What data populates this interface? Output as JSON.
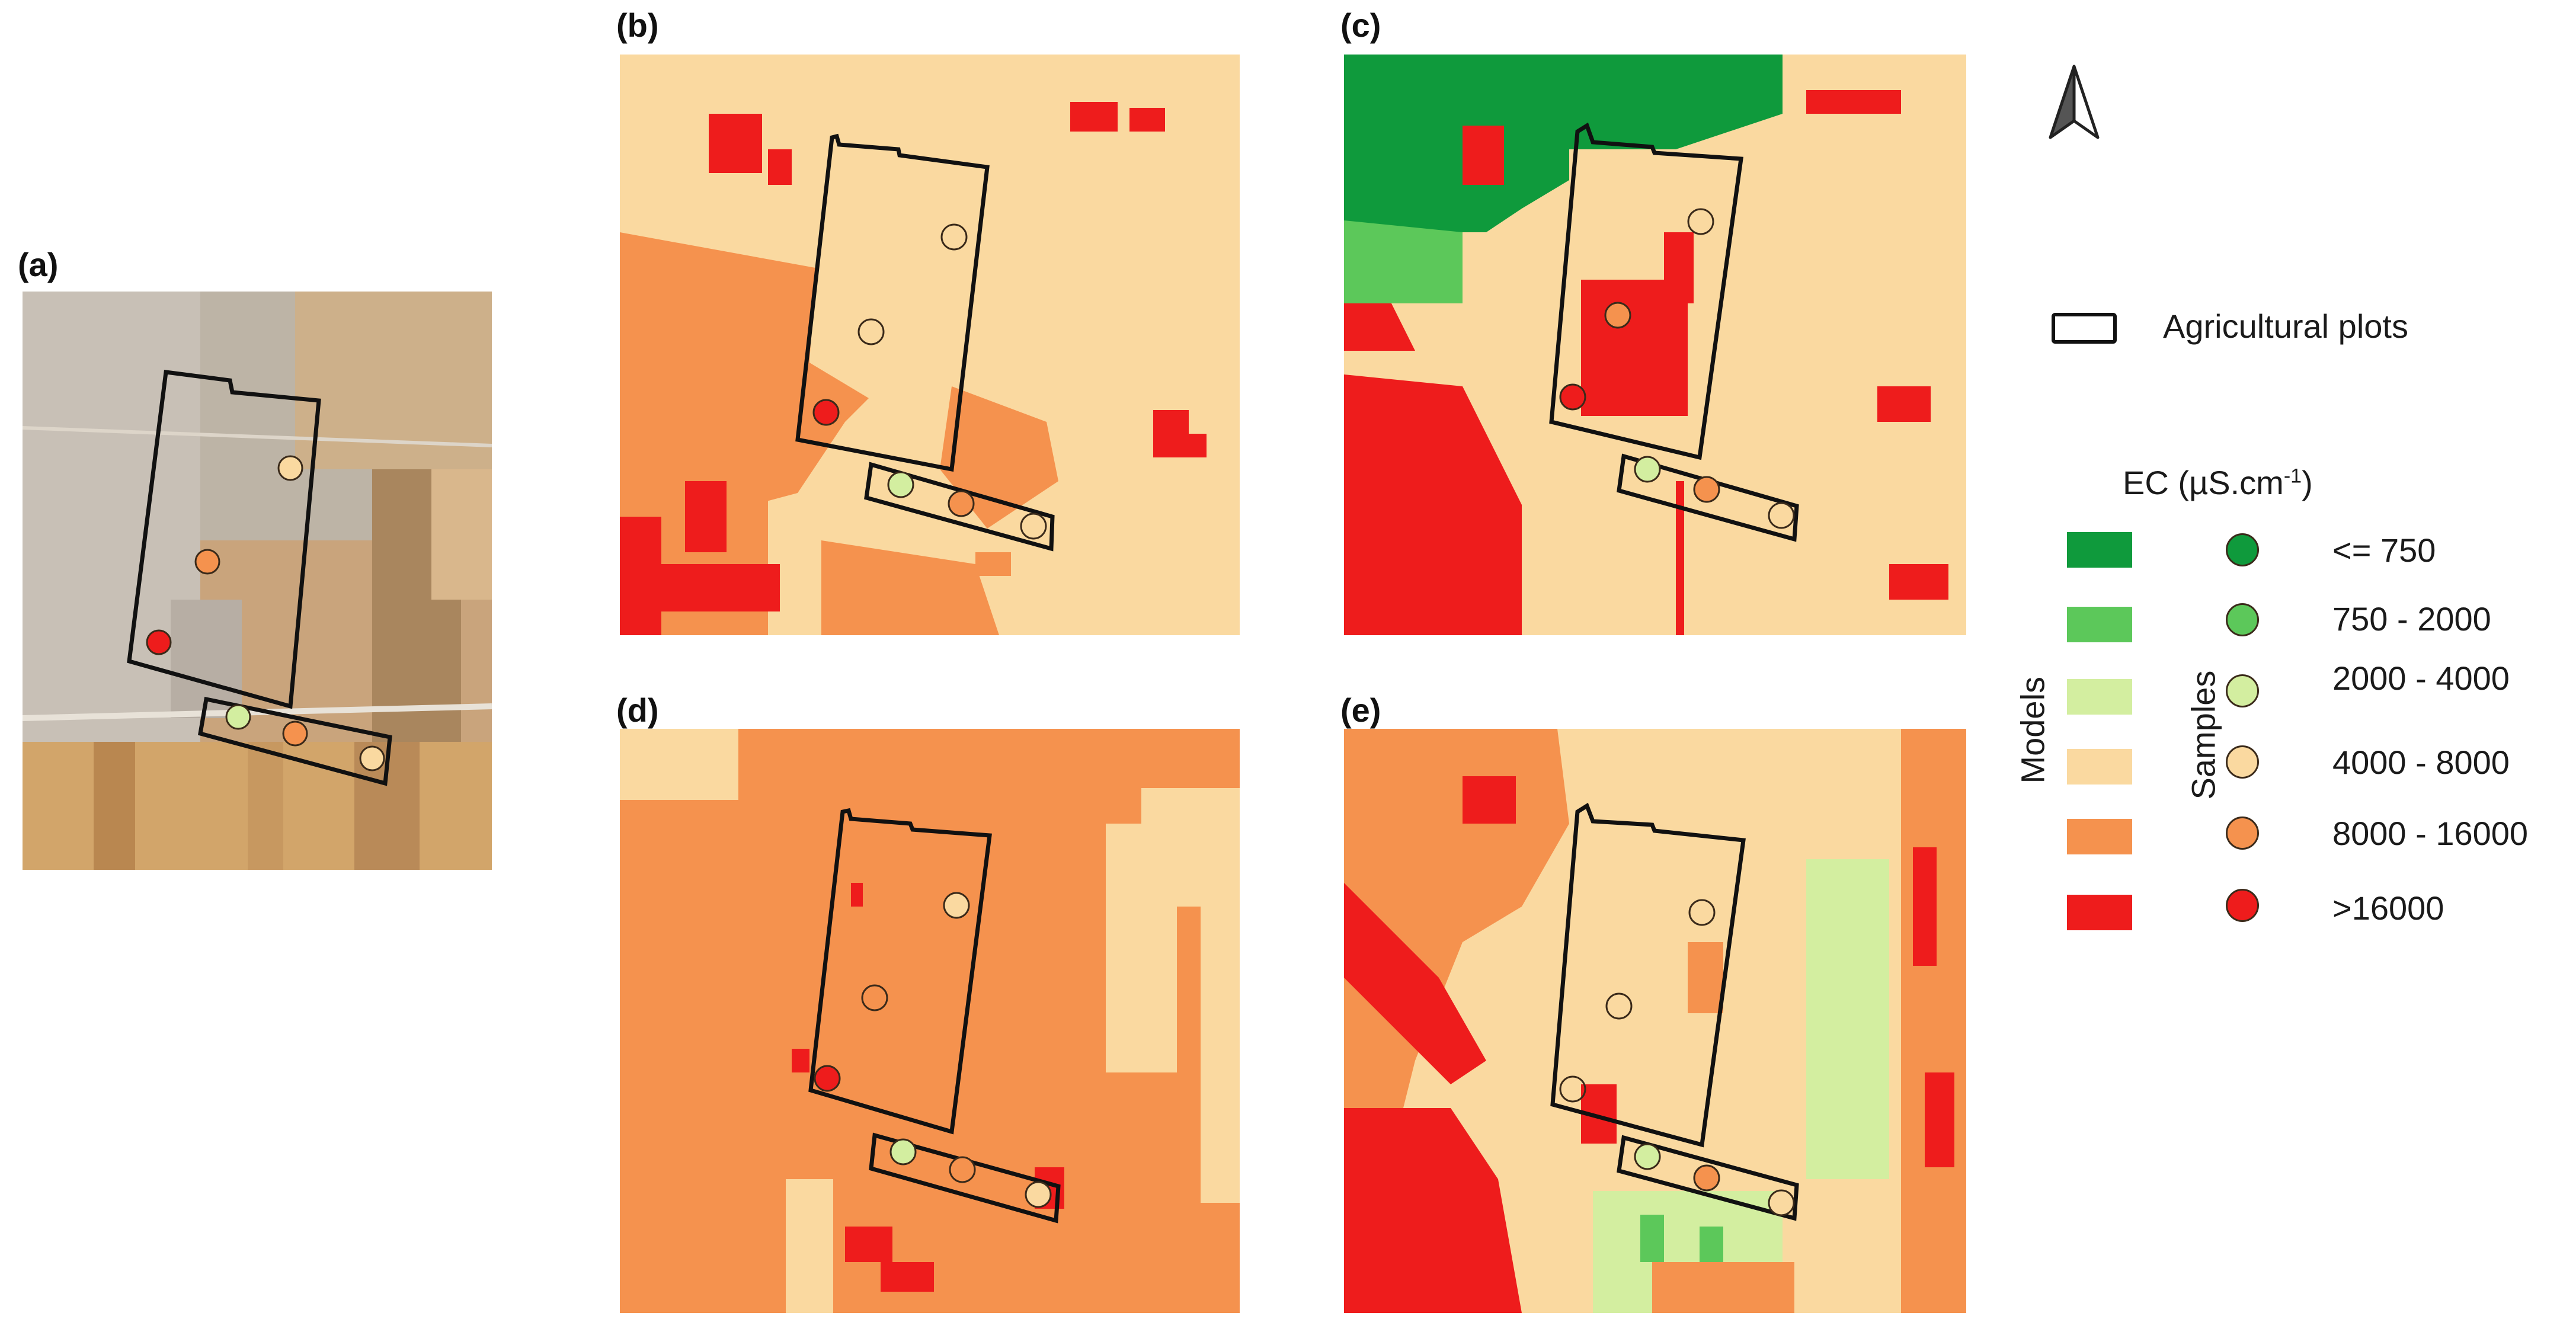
{
  "panels": {
    "a": {
      "label": "(a)"
    },
    "b": {
      "label": "(b)"
    },
    "c": {
      "label": "(c)"
    },
    "d": {
      "label": "(d)"
    },
    "e": {
      "label": "(e)"
    }
  },
  "legend": {
    "plots_label": "Agricultural plots",
    "ec_title": "EC (µS.cm",
    "ec_title_sup": "-1",
    "ec_title_close": ")",
    "models_label": "Models",
    "samples_label": "Samples",
    "classes": [
      {
        "label": "<= 750",
        "color": "#0f9a3c"
      },
      {
        "label": "750 - 2000",
        "color": "#5cc85a"
      },
      {
        "label": "2000 - 4000",
        "color": "#d3eea0"
      },
      {
        "label": "4000 - 8000",
        "color": "#fad9a0"
      },
      {
        "label": "8000 - 16000",
        "color": "#f5924e"
      },
      {
        "label": ">16000",
        "color": "#ee1c1c"
      }
    ]
  },
  "icons": {
    "north": "north-arrow-icon"
  }
}
